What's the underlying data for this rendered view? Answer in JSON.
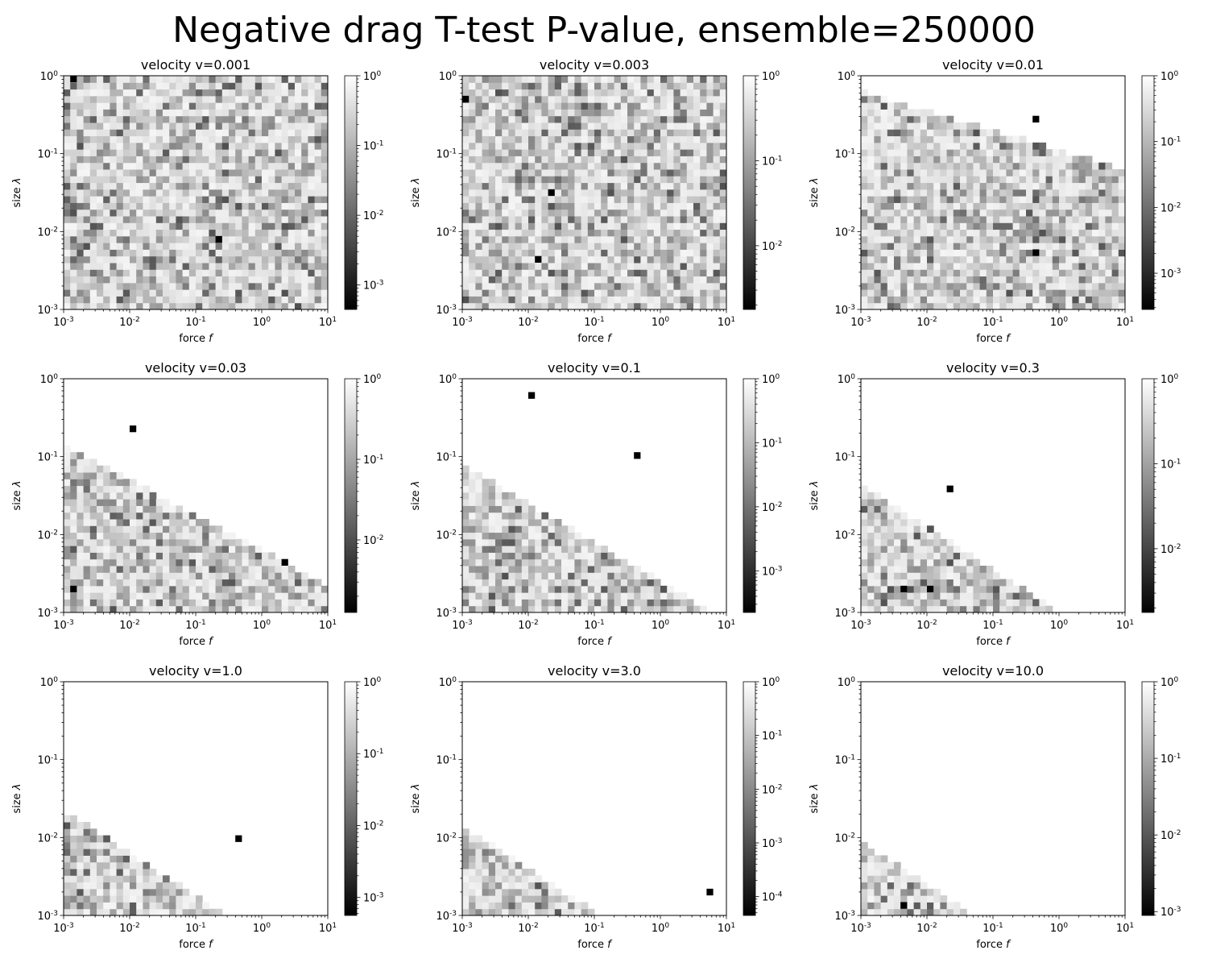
{
  "figure_title": "Negative drag T-test P-value, ensemble=250000",
  "chart_data": [
    {
      "type": "heatmap",
      "title": "velocity v=0.001",
      "xlabel": "force f",
      "ylabel": "size λ",
      "x_scale": "log",
      "y_scale": "log",
      "xlim": [
        0.001,
        10
      ],
      "ylim": [
        0.001,
        1
      ],
      "x_ticks": [
        "-3",
        "-2",
        "-1",
        "0",
        "1"
      ],
      "y_ticks": [
        "-3",
        "-2",
        "-1",
        "0"
      ],
      "colorbar": {
        "scale": "log",
        "cmap": "gray",
        "min_exp": -3.35,
        "ticks": [
          "-3",
          "-2",
          "-1",
          "0"
        ]
      },
      "boundary_slope": 0,
      "boundary_intercept": 99,
      "dark_cells": [
        [
          0.2,
          0.008
        ],
        [
          0.0015,
          0.95
        ]
      ]
    },
    {
      "type": "heatmap",
      "title": "velocity v=0.003",
      "xlabel": "force f",
      "ylabel": "size λ",
      "x_scale": "log",
      "y_scale": "log",
      "xlim": [
        0.001,
        10
      ],
      "ylim": [
        0.001,
        1
      ],
      "x_ticks": [
        "-3",
        "-2",
        "-1",
        "0",
        "1"
      ],
      "y_ticks": [
        "-3",
        "-2",
        "-1",
        "0"
      ],
      "colorbar": {
        "scale": "log",
        "cmap": "gray",
        "min_exp": -2.75,
        "ticks": [
          "-2",
          "-1",
          "0"
        ]
      },
      "boundary_slope": -0.1,
      "boundary_intercept": 0.4,
      "dark_cells": [
        [
          0.0012,
          0.5
        ],
        [
          0.015,
          0.004
        ],
        [
          0.025,
          0.03
        ]
      ]
    },
    {
      "type": "heatmap",
      "title": "velocity v=0.01",
      "xlabel": "force f",
      "ylabel": "size λ",
      "x_scale": "log",
      "y_scale": "log",
      "xlim": [
        0.001,
        10
      ],
      "ylim": [
        0.001,
        1
      ],
      "x_ticks": [
        "-3",
        "-2",
        "-1",
        "0",
        "1"
      ],
      "y_ticks": [
        "-3",
        "-2",
        "-1",
        "0"
      ],
      "colorbar": {
        "scale": "log",
        "cmap": "gray",
        "min_exp": -3.55,
        "ticks": [
          "-3",
          "-2",
          "-1",
          "0"
        ]
      },
      "boundary_slope": -0.25,
      "boundary_intercept": -0.2,
      "dark_cells": [
        [
          0.5,
          0.005
        ],
        [
          0.4,
          0.3
        ]
      ]
    },
    {
      "type": "heatmap",
      "title": "velocity v=0.03",
      "xlabel": "force f",
      "ylabel": "size λ",
      "x_scale": "log",
      "y_scale": "log",
      "xlim": [
        0.001,
        10
      ],
      "ylim": [
        0.001,
        1
      ],
      "x_ticks": [
        "-3",
        "-2",
        "-1",
        "0",
        "1"
      ],
      "y_ticks": [
        "-3",
        "-2",
        "-1",
        "0"
      ],
      "colorbar": {
        "scale": "log",
        "cmap": "gray",
        "min_exp": -2.9,
        "ticks": [
          "-2",
          "-1",
          "0"
        ]
      },
      "boundary_slope": -0.45,
      "boundary_intercept": -0.85,
      "dark_cells": [
        [
          0.0015,
          0.002
        ],
        [
          0.01,
          0.25
        ],
        [
          2,
          0.004
        ]
      ]
    },
    {
      "type": "heatmap",
      "title": "velocity v=0.1",
      "xlabel": "force f",
      "ylabel": "size λ",
      "x_scale": "log",
      "y_scale": "log",
      "xlim": [
        0.001,
        10
      ],
      "ylim": [
        0.001,
        1
      ],
      "x_ticks": [
        "-3",
        "-2",
        "-1",
        "0",
        "1"
      ],
      "y_ticks": [
        "-3",
        "-2",
        "-1",
        "0"
      ],
      "colorbar": {
        "scale": "log",
        "cmap": "gray",
        "min_exp": -3.65,
        "ticks": [
          "-3",
          "-2",
          "-1",
          "0"
        ]
      },
      "boundary_slope": -0.5,
      "boundary_intercept": -1.1,
      "dark_cells": [
        [
          0.01,
          0.6
        ],
        [
          0.4,
          0.1
        ]
      ]
    },
    {
      "type": "heatmap",
      "title": "velocity v=0.3",
      "xlabel": "force f",
      "ylabel": "size λ",
      "x_scale": "log",
      "y_scale": "log",
      "xlim": [
        0.001,
        10
      ],
      "ylim": [
        0.001,
        1
      ],
      "x_ticks": [
        "-3",
        "-2",
        "-1",
        "0",
        "1"
      ],
      "y_ticks": [
        "-3",
        "-2",
        "-1",
        "0"
      ],
      "colorbar": {
        "scale": "log",
        "cmap": "gray",
        "min_exp": -2.75,
        "ticks": [
          "-2",
          "-1",
          "0"
        ]
      },
      "boundary_slope": -0.55,
      "boundary_intercept": -1.35,
      "dark_cells": [
        [
          0.004,
          0.002
        ],
        [
          0.01,
          0.002
        ],
        [
          0.025,
          0.04
        ]
      ]
    },
    {
      "type": "heatmap",
      "title": "velocity v=1.0",
      "xlabel": "force f",
      "ylabel": "size λ",
      "x_scale": "log",
      "y_scale": "log",
      "xlim": [
        0.001,
        10
      ],
      "ylim": [
        0.001,
        1
      ],
      "x_ticks": [
        "-3",
        "-2",
        "-1",
        "0",
        "1"
      ],
      "y_ticks": [
        "-3",
        "-2",
        "-1",
        "0"
      ],
      "colorbar": {
        "scale": "log",
        "cmap": "gray",
        "min_exp": -3.25,
        "ticks": [
          "-3",
          "-2",
          "-1",
          "0"
        ]
      },
      "boundary_slope": -0.55,
      "boundary_intercept": -1.65,
      "dark_cells": [
        [
          0.5,
          0.01
        ]
      ]
    },
    {
      "type": "heatmap",
      "title": "velocity v=3.0",
      "xlabel": "force f",
      "ylabel": "size λ",
      "x_scale": "log",
      "y_scale": "log",
      "xlim": [
        0.001,
        10
      ],
      "ylim": [
        0.001,
        1
      ],
      "x_ticks": [
        "-3",
        "-2",
        "-1",
        "0",
        "1"
      ],
      "y_ticks": [
        "-3",
        "-2",
        "-1",
        "0"
      ],
      "colorbar": {
        "scale": "log",
        "cmap": "gray",
        "min_exp": -4.35,
        "ticks": [
          "-4",
          "-3",
          "-2",
          "-1",
          "0"
        ]
      },
      "boundary_slope": -0.55,
      "boundary_intercept": -1.85,
      "dark_cells": [
        [
          6,
          0.002
        ]
      ]
    },
    {
      "type": "heatmap",
      "title": "velocity v=10.0",
      "xlabel": "force f",
      "ylabel": "size λ",
      "x_scale": "log",
      "y_scale": "log",
      "xlim": [
        0.001,
        10
      ],
      "ylim": [
        0.001,
        1
      ],
      "x_ticks": [
        "-3",
        "-2",
        "-1",
        "0",
        "1"
      ],
      "y_ticks": [
        "-3",
        "-2",
        "-1",
        "0"
      ],
      "colorbar": {
        "scale": "log",
        "cmap": "gray",
        "min_exp": -3.05,
        "ticks": [
          "-3",
          "-2",
          "-1",
          "0"
        ]
      },
      "boundary_slope": -0.55,
      "boundary_intercept": -2.05,
      "dark_cells": [
        [
          0.005,
          0.0013
        ]
      ]
    }
  ]
}
